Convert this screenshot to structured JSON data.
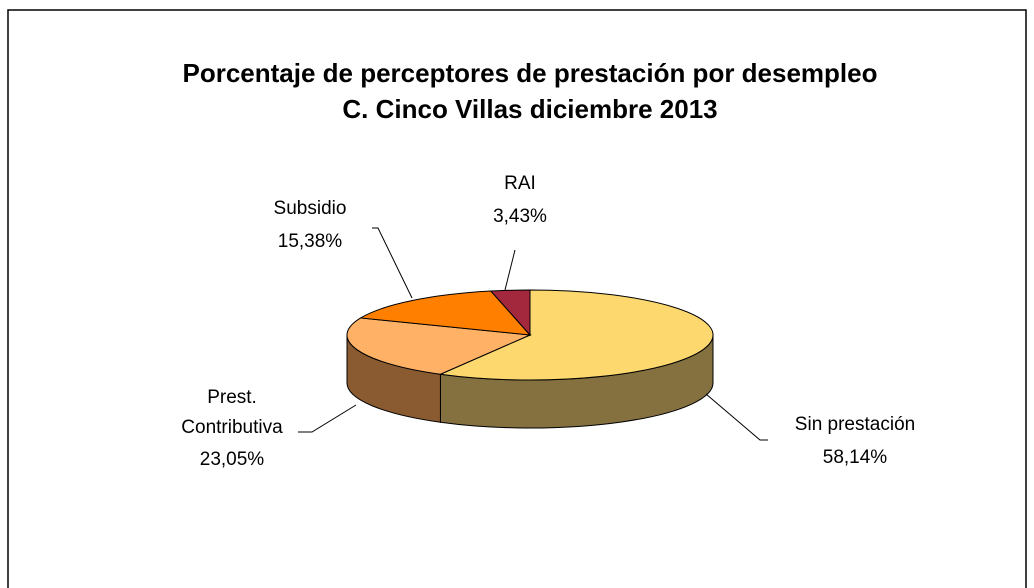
{
  "chart_data": {
    "type": "pie",
    "title": [
      "Porcentaje de perceptores de prestación por desempleo",
      "C. Cinco Villas diciembre 2013"
    ],
    "categories": [
      "Sin prestación",
      "Prest. Contributiva",
      "Subsidio",
      "RAI"
    ],
    "values": [
      58.14,
      23.05,
      15.38,
      3.43
    ],
    "value_labels": [
      "58,14%",
      "23,05%",
      "15,38%",
      "3,43%"
    ],
    "colors": [
      "#FCD86F",
      "#FFB266",
      "#FF8000",
      "#A3283E"
    ],
    "side_colors": [
      "#857040",
      "#8A5A30",
      "#B35A00",
      "#6E1B2A"
    ]
  }
}
